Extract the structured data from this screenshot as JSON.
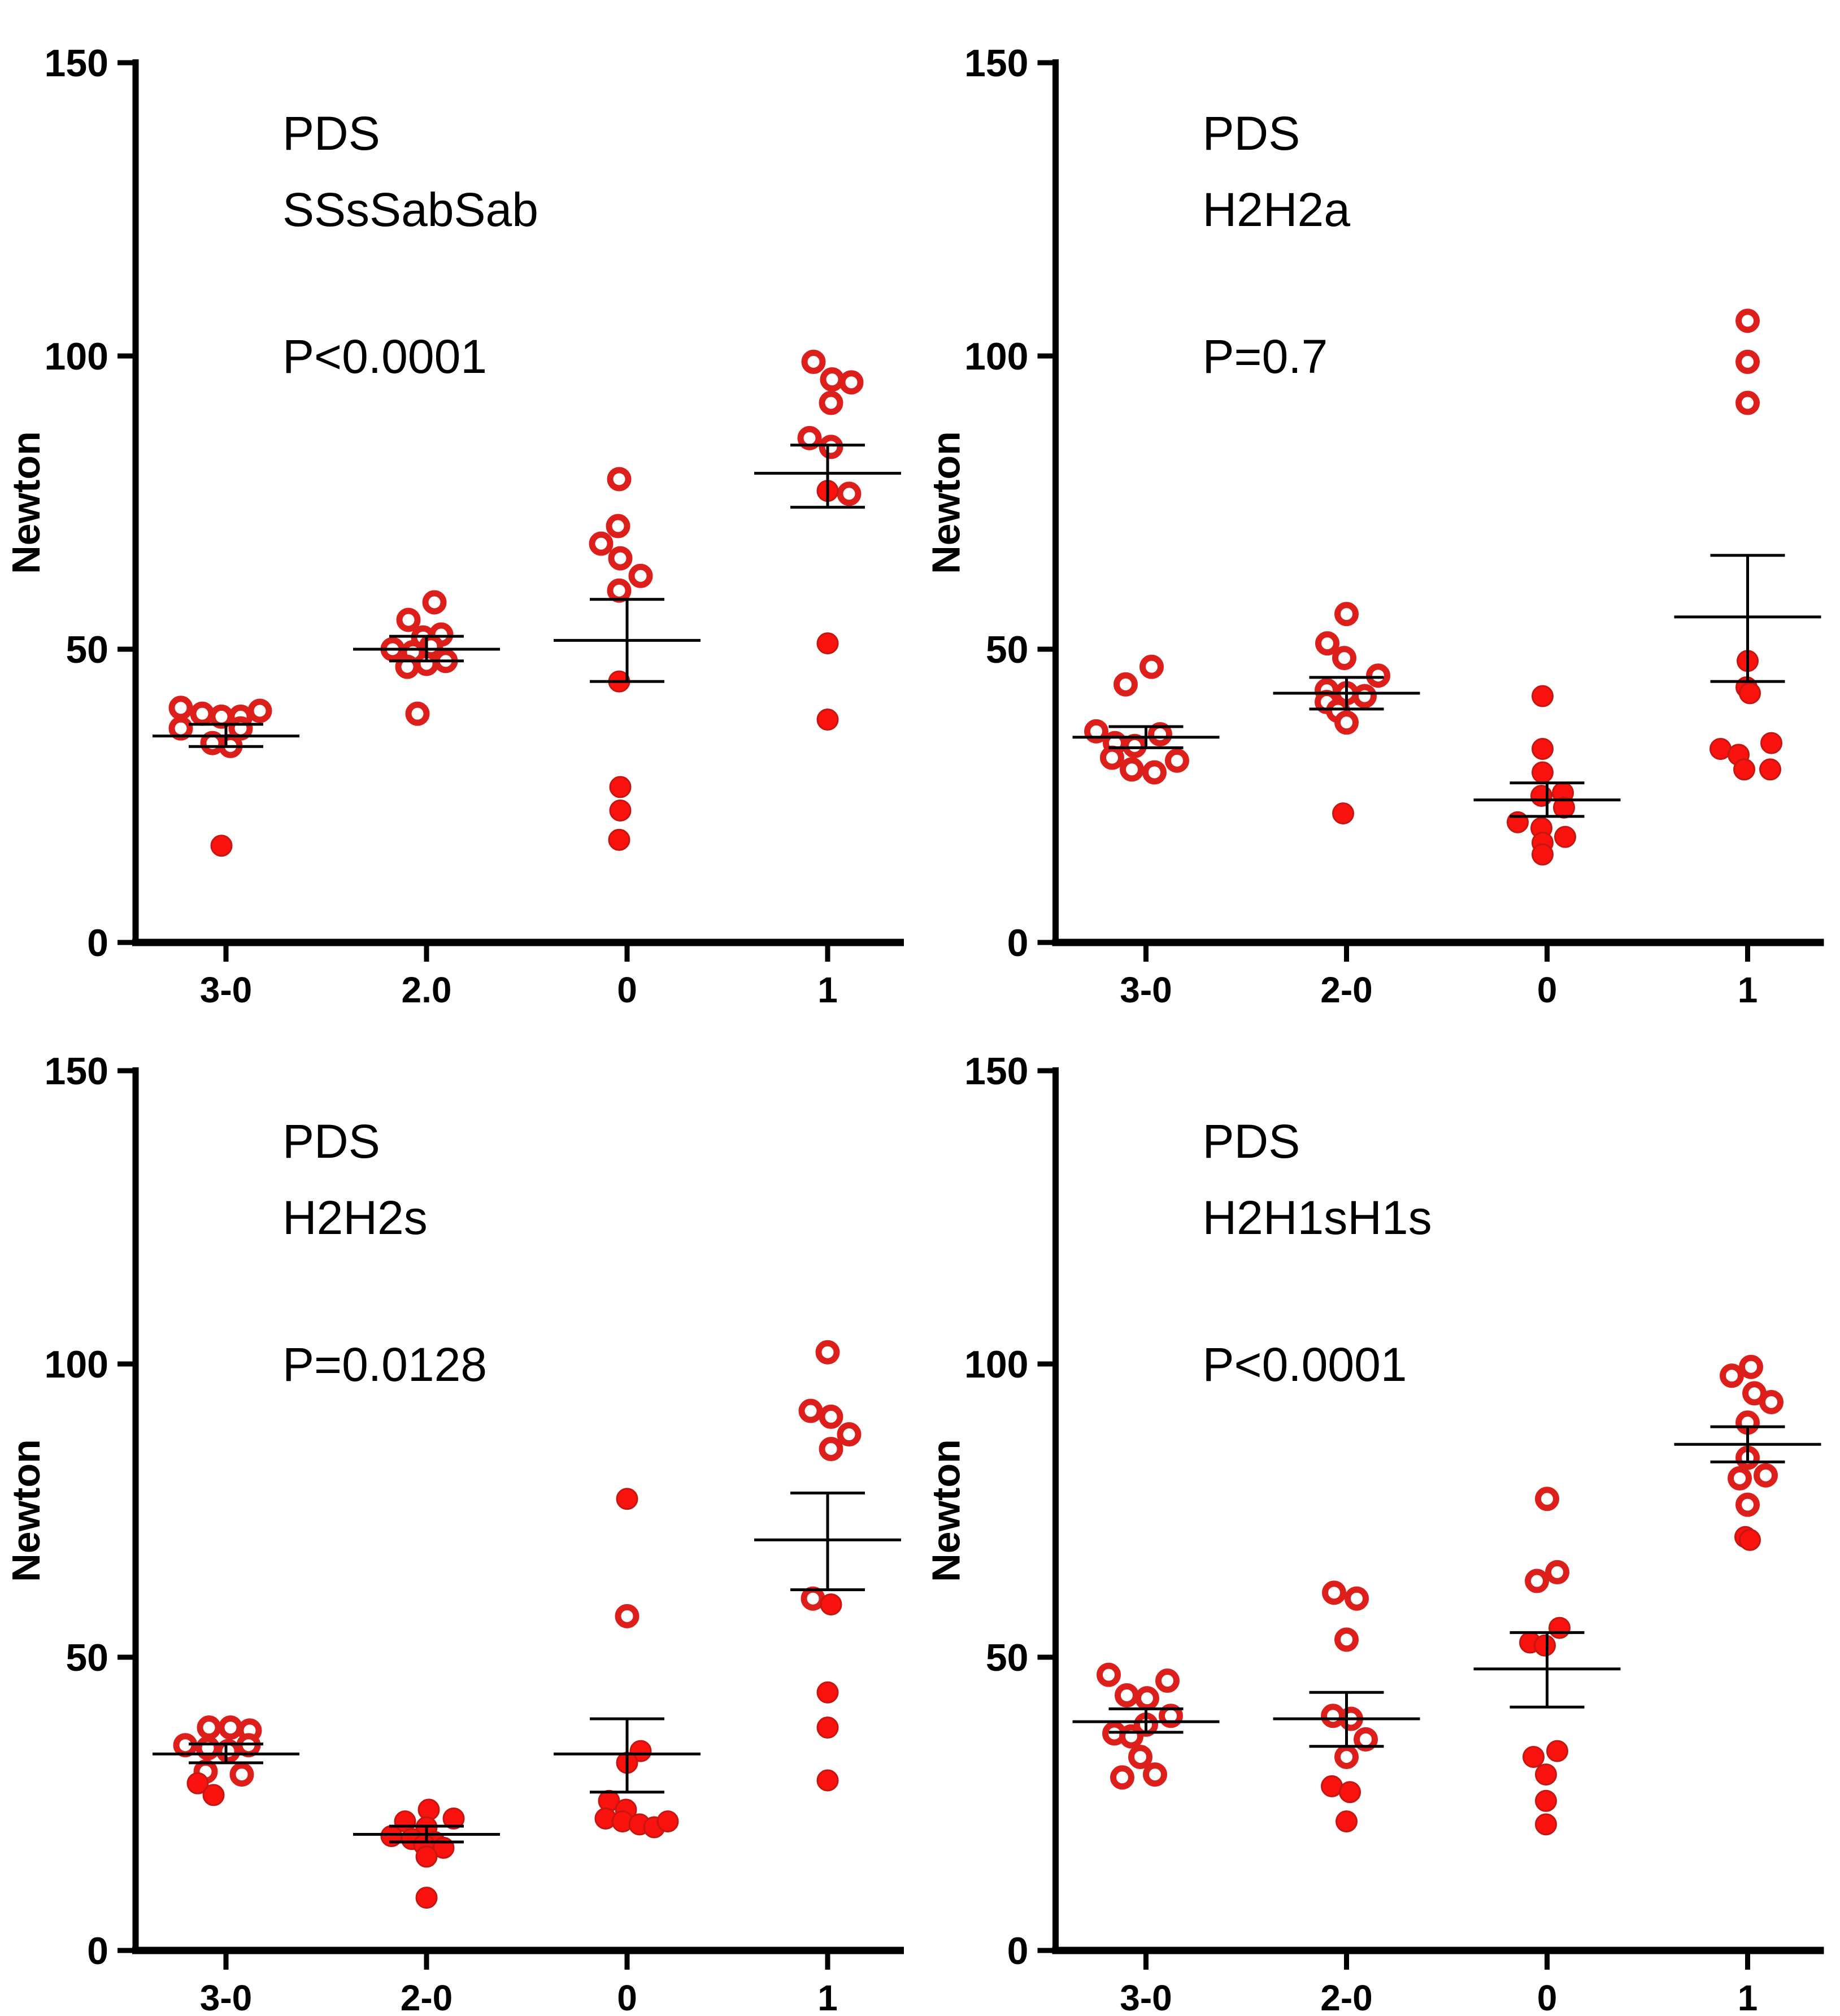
{
  "figure": {
    "background": "#ffffff",
    "description": "Four dot plots of pull-out force (Newton) for suture configurations PDS SSsSabSab, H2H2a, H2H2s, H2H1sH1s across categories 3-0, 2-0, 0, 1"
  },
  "colors": {
    "open_marker_stroke": "#dd1f1c",
    "open_marker_fill": "#ffffff",
    "filled_marker_fill": "#fa120f",
    "filled_marker_stroke": "#c41712",
    "error_bar": "#000000",
    "axis": "#000000",
    "text": "#000000",
    "p_value_red": "#ed3237"
  },
  "chart_data": [
    {
      "type": "scatter",
      "title": "PDS",
      "subtitle": "SSsSabSab",
      "p_label": "P<0.0001",
      "p_color": "#000000",
      "ylabel": "Newton",
      "ylim": [
        0,
        150
      ],
      "yticks": [
        0,
        50,
        100,
        150
      ],
      "categories": [
        "3-0",
        "2.0",
        "0",
        "1"
      ],
      "point_format": [
        "newton_value",
        "x_offset_px",
        "open_marker_1_filled_0"
      ],
      "groups": [
        {
          "category": "3-0",
          "mean": 35.2,
          "sem_low": 33.4,
          "sem_high": 37.2,
          "points": [
            [
              40,
              -80,
              1
            ],
            [
              36.5,
              -80,
              1
            ],
            [
              39,
              -42,
              1
            ],
            [
              38.5,
              -8,
              1
            ],
            [
              38.5,
              26,
              1
            ],
            [
              36.5,
              26,
              1
            ],
            [
              39.5,
              60,
              1
            ],
            [
              34,
              -24,
              1
            ],
            [
              33.5,
              8,
              1
            ],
            [
              16.5,
              -8,
              0
            ]
          ]
        },
        {
          "category": "2.0",
          "mean": 50,
          "sem_low": 48,
          "sem_high": 52.2,
          "points": [
            [
              55,
              -32,
              1
            ],
            [
              58,
              14,
              1
            ],
            [
              52,
              -6,
              1
            ],
            [
              52.5,
              26,
              1
            ],
            [
              50,
              -60,
              1
            ],
            [
              49.5,
              -24,
              1
            ],
            [
              50.5,
              8,
              1
            ],
            [
              47,
              -34,
              1
            ],
            [
              47.5,
              0,
              1
            ],
            [
              48,
              34,
              1
            ],
            [
              39,
              -16,
              1
            ]
          ]
        },
        {
          "category": "0",
          "mean": 51.5,
          "sem_low": 44.5,
          "sem_high": 58.5,
          "points": [
            [
              79,
              -14,
              1
            ],
            [
              71,
              -16,
              1
            ],
            [
              68,
              -46,
              1
            ],
            [
              65.5,
              -12,
              1
            ],
            [
              62.5,
              24,
              1
            ],
            [
              60,
              -14,
              1
            ],
            [
              44.5,
              -14,
              0
            ],
            [
              26.5,
              -12,
              0
            ],
            [
              22.5,
              -12,
              0
            ],
            [
              17.5,
              -14,
              0
            ]
          ]
        },
        {
          "category": "1",
          "mean": 80,
          "sem_low": 74.2,
          "sem_high": 84.8,
          "points": [
            [
              99,
              -25,
              1
            ],
            [
              96,
              8,
              1
            ],
            [
              95.5,
              42,
              1
            ],
            [
              92,
              6,
              1
            ],
            [
              86,
              -32,
              1
            ],
            [
              84.5,
              6,
              1
            ],
            [
              76.5,
              38,
              1
            ],
            [
              77,
              0,
              0
            ],
            [
              51,
              0,
              0
            ],
            [
              38,
              0,
              0
            ]
          ]
        }
      ]
    },
    {
      "type": "scatter",
      "title": "PDS",
      "subtitle": "H2H2a",
      "p_label": "P=0.7",
      "p_color": "#ed3237",
      "ylabel": "Newton",
      "ylim": [
        0,
        150
      ],
      "yticks": [
        0,
        50,
        100,
        150
      ],
      "categories": [
        "3-0",
        "2-0",
        "0",
        "1"
      ],
      "point_format": [
        "newton_value",
        "x_offset_px",
        "open_marker_1_filled_0"
      ],
      "groups": [
        {
          "category": "3-0",
          "mean": 35,
          "sem_low": 33.2,
          "sem_high": 36.8,
          "points": [
            [
              36,
              -88,
              1
            ],
            [
              44,
              -36,
              1
            ],
            [
              47,
              10,
              1
            ],
            [
              35.5,
              25,
              1
            ],
            [
              34,
              -55,
              1
            ],
            [
              33.5,
              -20,
              1
            ],
            [
              31.5,
              -60,
              1
            ],
            [
              31,
              55,
              1
            ],
            [
              29.5,
              -25,
              1
            ],
            [
              29,
              15,
              1
            ]
          ]
        },
        {
          "category": "2-0",
          "mean": 42.5,
          "sem_low": 39.8,
          "sem_high": 45.2,
          "points": [
            [
              56,
              0,
              1
            ],
            [
              51,
              -34,
              1
            ],
            [
              48.5,
              -4,
              1
            ],
            [
              45.5,
              56,
              1
            ],
            [
              43,
              -35,
              1
            ],
            [
              42.5,
              0,
              1
            ],
            [
              42,
              32,
              1
            ],
            [
              41,
              -35,
              1
            ],
            [
              39.5,
              -15,
              1
            ],
            [
              37.5,
              0,
              1
            ],
            [
              22,
              -6,
              0
            ]
          ]
        },
        {
          "category": "0",
          "mean": 24.3,
          "sem_low": 21.5,
          "sem_high": 27.2,
          "points": [
            [
              42,
              -8,
              0
            ],
            [
              33,
              -8,
              0
            ],
            [
              29,
              -8,
              0
            ],
            [
              25,
              -10,
              0
            ],
            [
              25.5,
              28,
              0
            ],
            [
              23,
              30,
              0
            ],
            [
              20.5,
              -52,
              0
            ],
            [
              19.5,
              -10,
              0
            ],
            [
              18,
              32,
              0
            ],
            [
              17,
              -8,
              0
            ],
            [
              15,
              -8,
              0
            ]
          ]
        },
        {
          "category": "1",
          "mean": 55.5,
          "sem_low": 44.5,
          "sem_high": 66,
          "points": [
            [
              106,
              0,
              1
            ],
            [
              99,
              0,
              1
            ],
            [
              92,
              0,
              1
            ],
            [
              48,
              0,
              0
            ],
            [
              43.5,
              -2,
              0
            ],
            [
              42.5,
              4,
              0
            ],
            [
              33,
              -48,
              0
            ],
            [
              32,
              -16,
              0
            ],
            [
              34,
              42,
              0
            ],
            [
              29.5,
              -6,
              0
            ],
            [
              29.5,
              40,
              0
            ]
          ]
        }
      ]
    },
    {
      "type": "scatter",
      "title": "PDS",
      "subtitle": "H2H2s",
      "p_label": "P=0.0128",
      "p_color": "#000000",
      "ylabel": "Newton",
      "ylim": [
        0,
        150
      ],
      "yticks": [
        0,
        50,
        100,
        150
      ],
      "categories": [
        "3-0",
        "2-0",
        "0",
        "1"
      ],
      "point_format": [
        "newton_value",
        "x_offset_px",
        "open_marker_1_filled_0"
      ],
      "groups": [
        {
          "category": "3-0",
          "mean": 33.5,
          "sem_low": 32,
          "sem_high": 35.2,
          "points": [
            [
              38,
              -30,
              1
            ],
            [
              38,
              8,
              1
            ],
            [
              37.5,
              42,
              1
            ],
            [
              35,
              -72,
              1
            ],
            [
              34.5,
              -32,
              1
            ],
            [
              34,
              4,
              1
            ],
            [
              35,
              40,
              1
            ],
            [
              30.5,
              -36,
              1
            ],
            [
              30,
              28,
              1
            ],
            [
              28.5,
              -50,
              0
            ],
            [
              26.5,
              -22,
              0
            ]
          ]
        },
        {
          "category": "2-0",
          "mean": 19.8,
          "sem_low": 18.5,
          "sem_high": 21.2,
          "points": [
            [
              24,
              4,
              0
            ],
            [
              22.5,
              48,
              0
            ],
            [
              22,
              -38,
              0
            ],
            [
              21,
              0,
              0
            ],
            [
              19.5,
              -62,
              0
            ],
            [
              19,
              -26,
              0
            ],
            [
              18.5,
              14,
              0
            ],
            [
              18,
              -4,
              0
            ],
            [
              17.5,
              30,
              0
            ],
            [
              16,
              0,
              0
            ],
            [
              9,
              0,
              0
            ]
          ]
        },
        {
          "category": "0",
          "mean": 33.5,
          "sem_low": 27,
          "sem_high": 39.5,
          "points": [
            [
              77,
              0,
              0
            ],
            [
              57,
              0,
              1
            ],
            [
              34,
              24,
              0
            ],
            [
              32,
              0,
              0
            ],
            [
              25.5,
              -32,
              0
            ],
            [
              24,
              -2,
              0
            ],
            [
              22.5,
              -38,
              0
            ],
            [
              22,
              -8,
              0
            ],
            [
              21.5,
              22,
              0
            ],
            [
              21,
              48,
              0
            ],
            [
              22,
              72,
              0
            ]
          ]
        },
        {
          "category": "1",
          "mean": 70,
          "sem_low": 61.5,
          "sem_high": 78,
          "points": [
            [
              102,
              0,
              1
            ],
            [
              92,
              -30,
              1
            ],
            [
              91,
              6,
              1
            ],
            [
              88,
              38,
              1
            ],
            [
              85.5,
              6,
              1
            ],
            [
              60,
              -26,
              1
            ],
            [
              59,
              6,
              0
            ],
            [
              44,
              0,
              0
            ],
            [
              38,
              0,
              0
            ],
            [
              29,
              0,
              0
            ]
          ]
        }
      ]
    },
    {
      "type": "scatter",
      "title": "PDS",
      "subtitle": "H2H1sH1s",
      "p_label": "P<0.0001",
      "p_color": "#000000",
      "ylabel": "Newton",
      "ylim": [
        0,
        150
      ],
      "yticks": [
        0,
        50,
        100,
        150
      ],
      "categories": [
        "3-0",
        "2-0",
        "0",
        "1"
      ],
      "point_format": [
        "newton_value",
        "x_offset_px",
        "open_marker_1_filled_0"
      ],
      "groups": [
        {
          "category": "3-0",
          "mean": 39,
          "sem_low": 37.2,
          "sem_high": 41.2,
          "points": [
            [
              47,
              -66,
              1
            ],
            [
              46,
              38,
              1
            ],
            [
              43.5,
              -34,
              1
            ],
            [
              43,
              2,
              1
            ],
            [
              40,
              44,
              1
            ],
            [
              38.5,
              0,
              1
            ],
            [
              37,
              -56,
              1
            ],
            [
              36.5,
              -26,
              1
            ],
            [
              33,
              -10,
              1
            ],
            [
              30,
              16,
              1
            ],
            [
              29.5,
              -42,
              1
            ]
          ]
        },
        {
          "category": "2-0",
          "mean": 39.5,
          "sem_low": 34.8,
          "sem_high": 44,
          "points": [
            [
              61,
              -22,
              1
            ],
            [
              60,
              18,
              1
            ],
            [
              53,
              0,
              1
            ],
            [
              40,
              -24,
              1
            ],
            [
              39.5,
              8,
              1
            ],
            [
              36,
              34,
              1
            ],
            [
              33,
              0,
              1
            ],
            [
              28,
              -26,
              0
            ],
            [
              27,
              6,
              0
            ],
            [
              22,
              0,
              0
            ]
          ]
        },
        {
          "category": "0",
          "mean": 48,
          "sem_low": 41.5,
          "sem_high": 54.2,
          "points": [
            [
              77,
              0,
              1
            ],
            [
              63,
              -18,
              1
            ],
            [
              64.5,
              18,
              1
            ],
            [
              55,
              22,
              0
            ],
            [
              52.5,
              -30,
              0
            ],
            [
              52,
              -4,
              0
            ],
            [
              33,
              -24,
              0
            ],
            [
              34,
              18,
              0
            ],
            [
              30,
              -2,
              0
            ],
            [
              25.5,
              -2,
              0
            ],
            [
              21.5,
              -2,
              0
            ]
          ]
        },
        {
          "category": "1",
          "mean": 86.3,
          "sem_low": 83.3,
          "sem_high": 89.3,
          "points": [
            [
              99.5,
              6,
              1
            ],
            [
              98,
              -28,
              1
            ],
            [
              95,
              12,
              1
            ],
            [
              93.5,
              42,
              1
            ],
            [
              90,
              0,
              1
            ],
            [
              84,
              0,
              1
            ],
            [
              80.5,
              -14,
              1
            ],
            [
              81,
              32,
              1
            ],
            [
              76,
              0,
              1
            ],
            [
              70.5,
              -4,
              0
            ],
            [
              70,
              4,
              0
            ]
          ]
        }
      ]
    }
  ]
}
